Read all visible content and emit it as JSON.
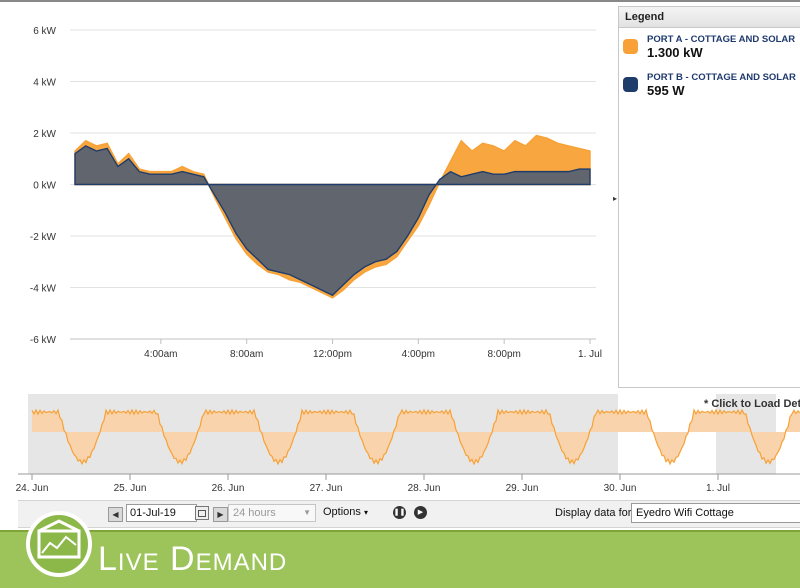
{
  "chart_data": [
    {
      "type": "area",
      "y_ticks": [
        "6 kW",
        "4 kW",
        "2 kW",
        "0 kW",
        "-2 kW",
        "-4 kW",
        "-6 kW"
      ],
      "y_tick_values": [
        6,
        4,
        2,
        0,
        -2,
        -4,
        -6
      ],
      "x_ticks": [
        "4:00am",
        "8:00am",
        "12:00pm",
        "4:00pm",
        "8:00pm",
        "1. Jul"
      ],
      "x_tick_hours": [
        4,
        8,
        12,
        16,
        20,
        24
      ],
      "ylim": [
        -6,
        6
      ],
      "xlim_hours": [
        0,
        24
      ],
      "grid": true,
      "series": [
        {
          "name": "PORT A - COTTAGE AND SOLAR",
          "color": "#f7a136",
          "x_hours": [
            0,
            0.5,
            1,
            1.5,
            2,
            2.5,
            3,
            3.5,
            4,
            4.5,
            5,
            5.5,
            6,
            6.5,
            7,
            7.5,
            8,
            8.5,
            9,
            9.5,
            10,
            10.5,
            11,
            11.5,
            12,
            12.5,
            13,
            13.5,
            14,
            14.5,
            15,
            15.5,
            16,
            16.5,
            17,
            17.5,
            18,
            18.5,
            19,
            19.5,
            20,
            20.5,
            21,
            21.5,
            22,
            22.5,
            23,
            23.5,
            24
          ],
          "values": [
            1.3,
            1.7,
            1.5,
            1.6,
            0.8,
            1.2,
            0.6,
            0.5,
            0.5,
            0.5,
            0.7,
            0.5,
            0.4,
            -0.5,
            -1.3,
            -2.1,
            -2.7,
            -3.1,
            -3.4,
            -3.5,
            -3.7,
            -3.8,
            -4.0,
            -4.2,
            -4.4,
            -4.1,
            -3.7,
            -3.4,
            -3.2,
            -3.1,
            -2.8,
            -2.2,
            -1.6,
            -0.8,
            0.1,
            0.9,
            1.7,
            1.3,
            1.6,
            1.5,
            1.3,
            1.7,
            1.5,
            1.9,
            1.8,
            1.6,
            1.5,
            1.4,
            1.3
          ]
        },
        {
          "name": "PORT B - COTTAGE AND SOLAR",
          "color": "#1f3d6b",
          "x_hours": [
            0,
            0.5,
            1,
            1.5,
            2,
            2.5,
            3,
            3.5,
            4,
            4.5,
            5,
            5.5,
            6,
            6.5,
            7,
            7.5,
            8,
            8.5,
            9,
            9.5,
            10,
            10.5,
            11,
            11.5,
            12,
            12.5,
            13,
            13.5,
            14,
            14.5,
            15,
            15.5,
            16,
            16.5,
            17,
            17.5,
            18,
            18.5,
            19,
            19.5,
            20,
            20.5,
            21,
            21.5,
            22,
            22.5,
            23,
            23.5,
            24
          ],
          "values": [
            1.2,
            1.5,
            1.3,
            1.4,
            0.7,
            1.0,
            0.5,
            0.4,
            0.4,
            0.4,
            0.5,
            0.4,
            0.3,
            -0.4,
            -1.1,
            -1.9,
            -2.5,
            -2.9,
            -3.3,
            -3.4,
            -3.5,
            -3.7,
            -3.9,
            -4.1,
            -4.3,
            -3.9,
            -3.5,
            -3.2,
            -3.0,
            -2.9,
            -2.6,
            -2.0,
            -1.3,
            -0.4,
            0.2,
            0.5,
            0.3,
            0.4,
            0.5,
            0.4,
            0.4,
            0.5,
            0.5,
            0.5,
            0.5,
            0.5,
            0.5,
            0.6,
            0.6
          ]
        }
      ]
    },
    {
      "type": "area",
      "x_ticks": [
        "24. Jun",
        "25. Jun",
        "26. Jun",
        "27. Jun",
        "28. Jun",
        "29. Jun",
        "30. Jun",
        "1. Jul"
      ],
      "series": [
        {
          "name": "PORT A - COTTAGE AND SOLAR",
          "color": "#f7a136"
        }
      ]
    }
  ],
  "legend": {
    "title": "Legend",
    "items": [
      {
        "name": "PORT A - COTTAGE AND SOLAR",
        "value": "1.300 kW",
        "color": "#f7a136"
      },
      {
        "name": "PORT B - COTTAGE AND SOLAR",
        "value": "595 W",
        "color": "#1f3d6b"
      }
    ]
  },
  "navigator": {
    "note": "* Click to Load Deta"
  },
  "toolbar": {
    "date_value": "01-Jul-19",
    "range_select": "24 hours",
    "options_label": "Options",
    "display_label": "Display data for:",
    "display_value": "Eyedro Wifi Cottage"
  },
  "banner": {
    "title": "Live Demand"
  }
}
